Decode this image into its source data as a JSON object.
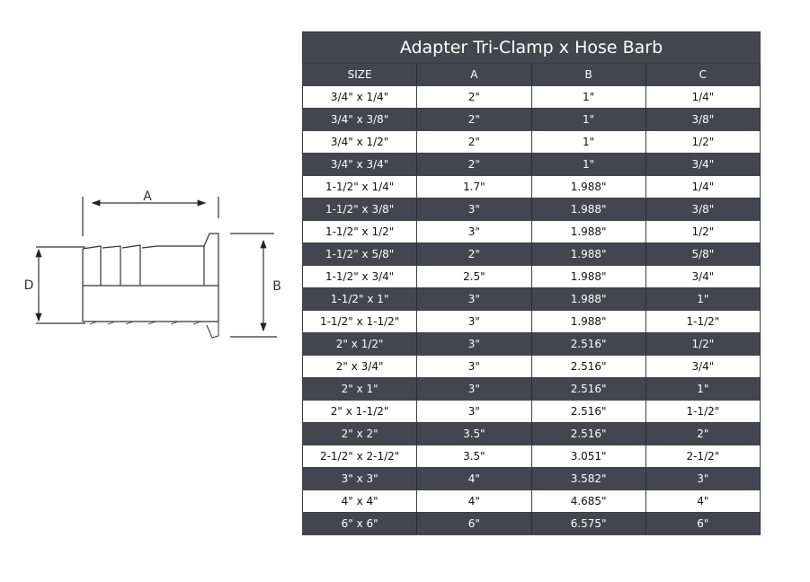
{
  "diagram": {
    "labels": {
      "a": "A",
      "b": "B",
      "d": "D"
    }
  },
  "table": {
    "title": "Adapter Tri-Clamp x Hose Barb",
    "headers": [
      "SIZE",
      "A",
      "B",
      "C"
    ],
    "rows": [
      [
        "3/4\" x 1/4\"",
        "2\"",
        "1\"",
        "1/4\""
      ],
      [
        "3/4\" x 3/8\"",
        "2\"",
        "1\"",
        "3/8\""
      ],
      [
        "3/4\" x 1/2\"",
        "2\"",
        "1\"",
        "1/2\""
      ],
      [
        "3/4\" x 3/4\"",
        "2\"",
        "1\"",
        "3/4\""
      ],
      [
        "1-1/2\" x 1/4\"",
        "1.7\"",
        "1.988\"",
        "1/4\""
      ],
      [
        "1-1/2\" x 3/8\"",
        "3\"",
        "1.988\"",
        "3/8\""
      ],
      [
        "1-1/2\" x 1/2\"",
        "3\"",
        "1.988\"",
        "1/2\""
      ],
      [
        "1-1/2\" x 5/8\"",
        "2\"",
        "1.988\"",
        "5/8\""
      ],
      [
        "1-1/2\" x 3/4\"",
        "2.5\"",
        "1.988\"",
        "3/4\""
      ],
      [
        "1-1/2\" x 1\"",
        "3\"",
        "1.988\"",
        "1\""
      ],
      [
        "1-1/2\" x 1-1/2\"",
        "3\"",
        "1.988\"",
        "1-1/2\""
      ],
      [
        "2\" x 1/2\"",
        "3\"",
        "2.516\"",
        "1/2\""
      ],
      [
        "2\" x 3/4\"",
        "3\"",
        "2.516\"",
        "3/4\""
      ],
      [
        "2\" x 1\"",
        "3\"",
        "2.516\"",
        "1\""
      ],
      [
        "2\" x 1-1/2\"",
        "3\"",
        "2.516\"",
        "1-1/2\""
      ],
      [
        "2\" x 2\"",
        "3.5\"",
        "2.516\"",
        "2\""
      ],
      [
        "2-1/2\" x 2-1/2\"",
        "3.5\"",
        "3.051\"",
        "2-1/2\""
      ],
      [
        "3\" x 3\"",
        "4\"",
        "3.582\"",
        "3\""
      ],
      [
        "4\" x 4\"",
        "4\"",
        "4.685\"",
        "4\""
      ],
      [
        "6\" x 6\"",
        "6\"",
        "6.575\"",
        "6\""
      ]
    ],
    "colors": {
      "dark": "#44454f",
      "light": "#ffffff"
    }
  }
}
